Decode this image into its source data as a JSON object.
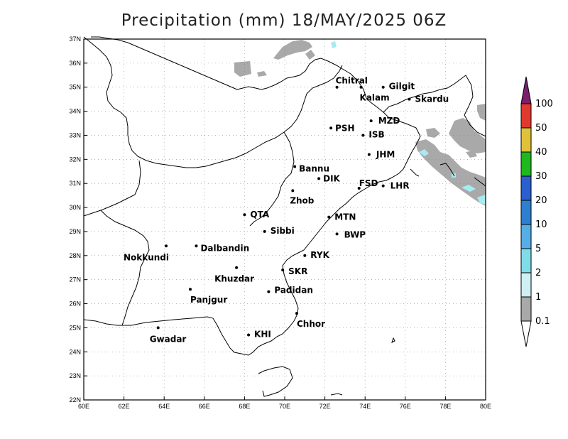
{
  "title": "Precipitation (mm) 18/MAY/2025 06Z",
  "lon_labels": [
    "60E",
    "62E",
    "64E",
    "66E",
    "68E",
    "70E",
    "72E",
    "74E",
    "76E",
    "78E",
    "80E"
  ],
  "lat_labels": [
    "22N",
    "23N",
    "24N",
    "25N",
    "26N",
    "27N",
    "28N",
    "29N",
    "30N",
    "31N",
    "32N",
    "33N",
    "34N",
    "35N",
    "36N",
    "37N"
  ],
  "extent": {
    "lon": [
      60,
      80
    ],
    "lat": [
      22,
      37
    ]
  },
  "cities": [
    {
      "name": "Chitral",
      "lon": 72.6,
      "lat": 35.0
    },
    {
      "name": "Gilgit",
      "lon": 74.9,
      "lat": 35.0
    },
    {
      "name": "Kalam",
      "lon": 73.8,
      "lat": 35.0
    },
    {
      "name": "Skardu",
      "lon": 76.2,
      "lat": 34.5
    },
    {
      "name": "MZD",
      "lon": 74.3,
      "lat": 33.6
    },
    {
      "name": "PSH",
      "lon": 72.3,
      "lat": 33.3
    },
    {
      "name": "ISB",
      "lon": 73.9,
      "lat": 33.0
    },
    {
      "name": "JHM",
      "lon": 74.2,
      "lat": 32.2
    },
    {
      "name": "Bannu",
      "lon": 70.5,
      "lat": 31.7
    },
    {
      "name": "DIK",
      "lon": 71.7,
      "lat": 31.2
    },
    {
      "name": "FSD",
      "lon": 73.7,
      "lat": 30.8
    },
    {
      "name": "LHR",
      "lon": 74.9,
      "lat": 30.9
    },
    {
      "name": "Zhob",
      "lon": 70.4,
      "lat": 30.7
    },
    {
      "name": "QTA",
      "lon": 68.0,
      "lat": 29.7
    },
    {
      "name": "MTN",
      "lon": 72.2,
      "lat": 29.6
    },
    {
      "name": "Sibbi",
      "lon": 69.0,
      "lat": 29.0
    },
    {
      "name": "BWP",
      "lon": 72.6,
      "lat": 28.9
    },
    {
      "name": "Dalbandin",
      "lon": 65.6,
      "lat": 28.4
    },
    {
      "name": "Nokkundi",
      "lon": 64.1,
      "lat": 28.4
    },
    {
      "name": "RYK",
      "lon": 71.0,
      "lat": 28.0
    },
    {
      "name": "Khuzdar",
      "lon": 67.6,
      "lat": 27.5
    },
    {
      "name": "SKR",
      "lon": 69.9,
      "lat": 27.4
    },
    {
      "name": "Panjgur",
      "lon": 65.3,
      "lat": 26.6
    },
    {
      "name": "Padidan",
      "lon": 69.2,
      "lat": 26.5
    },
    {
      "name": "Chhor",
      "lon": 70.6,
      "lat": 25.6
    },
    {
      "name": "KHI",
      "lon": 68.2,
      "lat": 24.7
    },
    {
      "name": "Gwadar",
      "lon": 63.7,
      "lat": 25.0
    }
  ],
  "colorbar": {
    "labels": [
      "100",
      "50",
      "40",
      "30",
      "20",
      "10",
      "5",
      "2",
      "1",
      "0.1"
    ],
    "colors": [
      "#7a1e6e",
      "#e03a2f",
      "#e0c23a",
      "#1fb81f",
      "#2a5fcf",
      "#2f7fd1",
      "#56aee6",
      "#7fdde8",
      "#cfeff2",
      "#a9a9a9"
    ]
  },
  "precip_color": "#a9a9a9",
  "light_color": "#a8eaf2"
}
